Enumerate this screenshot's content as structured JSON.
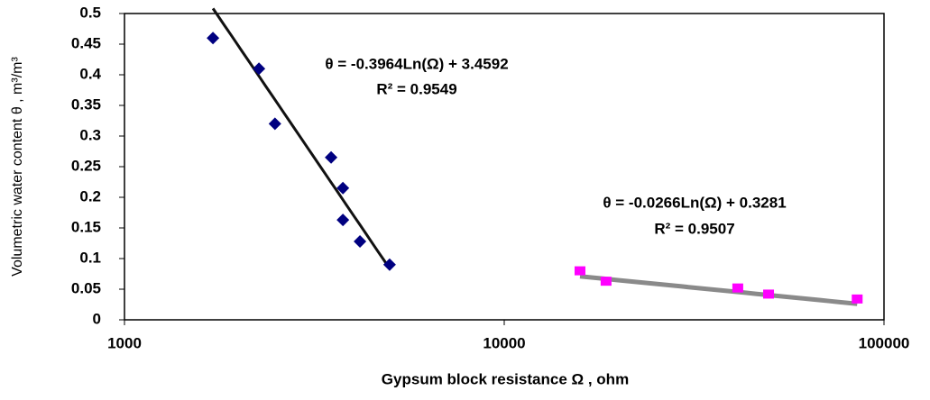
{
  "chart_data": {
    "type": "scatter",
    "xlabel": "Gypsum block resistance Ω , ohm",
    "ylabel": "Volumetric water content θ , m³/m³",
    "xscale": "log",
    "xlim": [
      1000,
      100000
    ],
    "xticks": [
      1000,
      10000,
      100000
    ],
    "ylim": [
      0,
      0.5
    ],
    "yticks": [
      0,
      0.05,
      0.1,
      0.15,
      0.2,
      0.25,
      0.3,
      0.35,
      0.4,
      0.45,
      0.5
    ],
    "grid": false,
    "series": [
      {
        "color": "#000080",
        "marker": "diamond",
        "x": [
          1710,
          2260,
          2490,
          3500,
          3760,
          3760,
          4170,
          4990
        ],
        "values": [
          0.46,
          0.41,
          0.32,
          0.265,
          0.215,
          0.163,
          0.128,
          0.09
        ],
        "trendline": {
          "color": "#111111",
          "slope": -0.3964,
          "intercept": 3.4592,
          "equation": "θ = -0.3964Ln(Ω) + 3.4592",
          "r2_label": "R² = 0.9549"
        }
      },
      {
        "color": "#FF00FF",
        "marker": "square",
        "x": [
          15830,
          18540,
          41210,
          49660,
          85000
        ],
        "values": [
          0.08,
          0.063,
          0.052,
          0.042,
          0.034
        ],
        "trendline": {
          "color": "#8a8a8a",
          "slope": -0.0266,
          "intercept": 0.3281,
          "equation": "θ = -0.0266Ln(Ω) + 0.3281",
          "r2_label": "R² = 0.9507"
        }
      }
    ]
  }
}
